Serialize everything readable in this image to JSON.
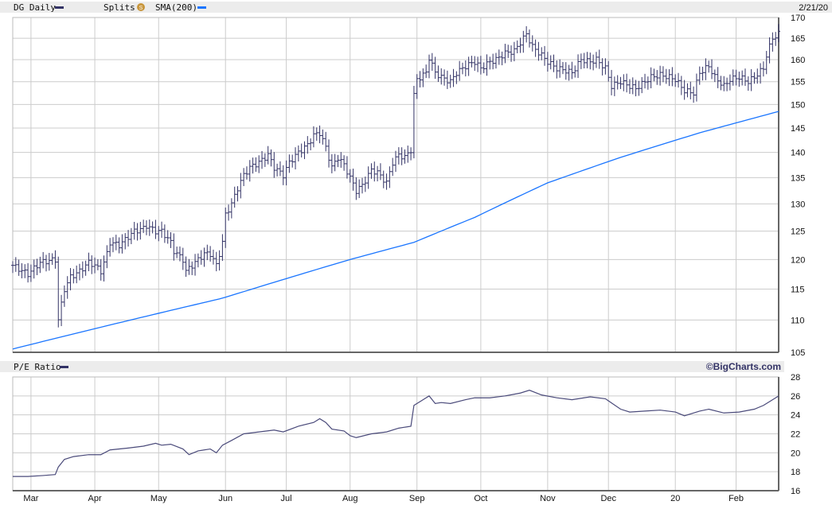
{
  "header": {
    "symbol_label": "DG Daily",
    "splits_label": "Splits",
    "splits_icon": "S",
    "sma_label": "SMA(200)",
    "date": "2/21/20",
    "pe_label": "P/E Ratio",
    "brand": "©BigCharts.com"
  },
  "colors": {
    "price": "#333366",
    "sma": "#1a75ff",
    "splits": "#c8963c",
    "grid": "#cccccc",
    "header_bg": "#ececec"
  },
  "chart_data": [
    {
      "type": "line",
      "title": "DG Daily",
      "scale": "log",
      "ylim": [
        105,
        170
      ],
      "y_ticks": [
        "170",
        "165",
        "160",
        "155",
        "150",
        "145",
        "140",
        "135",
        "130",
        "125",
        "120",
        "115",
        "110",
        "105"
      ],
      "x_ticks": [
        {
          "label": "Mar",
          "day": 6
        },
        {
          "label": "Apr",
          "day": 27
        },
        {
          "label": "May",
          "day": 48
        },
        {
          "label": "Jun",
          "day": 70
        },
        {
          "label": "Jul",
          "day": 90
        },
        {
          "label": "Aug",
          "day": 111
        },
        {
          "label": "Sep",
          "day": 133
        },
        {
          "label": "Oct",
          "day": 154
        },
        {
          "label": "Nov",
          "day": 176
        },
        {
          "label": "Dec",
          "day": 196
        },
        {
          "label": "20",
          "day": 218
        },
        {
          "label": "Feb",
          "day": 238
        }
      ],
      "days": 252,
      "series": [
        {
          "name": "DG Daily",
          "style": "ohlc",
          "points": [
            [
              0,
              119
            ],
            [
              5,
              117.5
            ],
            [
              9,
              119.5
            ],
            [
              14,
              120
            ],
            [
              15,
              110
            ],
            [
              17,
              115
            ],
            [
              19,
              117
            ],
            [
              22,
              118
            ],
            [
              25,
              119.5
            ],
            [
              27,
              119
            ],
            [
              29,
              118
            ],
            [
              31,
              121
            ],
            [
              32,
              123
            ],
            [
              35,
              122.5
            ],
            [
              38,
              124
            ],
            [
              40,
              125
            ],
            [
              43,
              125.5
            ],
            [
              44,
              126
            ],
            [
              47,
              125
            ],
            [
              49,
              125
            ],
            [
              52,
              123
            ],
            [
              53,
              121.5
            ],
            [
              56,
              120
            ],
            [
              57,
              118
            ],
            [
              59,
              119
            ],
            [
              61,
              120
            ],
            [
              63,
              121
            ],
            [
              65,
              121
            ],
            [
              67,
              119
            ],
            [
              69,
              123
            ],
            [
              70,
              128
            ],
            [
              72,
              130
            ],
            [
              74,
              133
            ],
            [
              76,
              135.5
            ],
            [
              78,
              137
            ],
            [
              81,
              138
            ],
            [
              84,
              139.5
            ],
            [
              86,
              137
            ],
            [
              89,
              135.5
            ],
            [
              91,
              138
            ],
            [
              94,
              140
            ],
            [
              97,
              141.5
            ],
            [
              99,
              143.5
            ],
            [
              101,
              144
            ],
            [
              103,
              141
            ],
            [
              105,
              137
            ],
            [
              107,
              139
            ],
            [
              109,
              137.5
            ],
            [
              111,
              135
            ],
            [
              113,
              132.5
            ],
            [
              115,
              133.5
            ],
            [
              118,
              136.5
            ],
            [
              120,
              136
            ],
            [
              123,
              134
            ],
            [
              125,
              138
            ],
            [
              127,
              139.5
            ],
            [
              129,
              139
            ],
            [
              131,
              140.5
            ],
            [
              132,
              152
            ],
            [
              133,
              155.5
            ],
            [
              136,
              157
            ],
            [
              137,
              160.5
            ],
            [
              139,
              157
            ],
            [
              141,
              156
            ],
            [
              144,
              155
            ],
            [
              146,
              157
            ],
            [
              149,
              158.5
            ],
            [
              152,
              159.5
            ],
            [
              154,
              158
            ],
            [
              157,
              159.5
            ],
            [
              159,
              160
            ],
            [
              162,
              161.5
            ],
            [
              165,
              162
            ],
            [
              167,
              164
            ],
            [
              169,
              166
            ],
            [
              171,
              163
            ],
            [
              174,
              161
            ],
            [
              176,
              159.5
            ],
            [
              179,
              158
            ],
            [
              182,
              157.5
            ],
            [
              184,
              157
            ],
            [
              187,
              160
            ],
            [
              190,
              159.5
            ],
            [
              192,
              160
            ],
            [
              195,
              158
            ],
            [
              197,
              154
            ],
            [
              200,
              155
            ],
            [
              203,
              154
            ],
            [
              205,
              153.5
            ],
            [
              208,
              155
            ],
            [
              210,
              156
            ],
            [
              213,
              156.5
            ],
            [
              216,
              156
            ],
            [
              218,
              155.5
            ],
            [
              221,
              153
            ],
            [
              224,
              152.5
            ],
            [
              226,
              157
            ],
            [
              229,
              158.5
            ],
            [
              231,
              156
            ],
            [
              234,
              154
            ],
            [
              236,
              155.5
            ],
            [
              239,
              156
            ],
            [
              242,
              155
            ],
            [
              244,
              156
            ],
            [
              247,
              158
            ],
            [
              248,
              161
            ],
            [
              250,
              165
            ],
            [
              252,
              166
            ]
          ]
        },
        {
          "name": "SMA(200)",
          "style": "line",
          "points": [
            [
              0,
              105.5
            ],
            [
              69,
              113.5
            ],
            [
              111,
              120
            ],
            [
              132,
              123
            ],
            [
              152,
              127.5
            ],
            [
              176,
              134
            ],
            [
              200,
              139
            ],
            [
              226,
              144
            ],
            [
              252,
              148.5
            ]
          ]
        }
      ]
    },
    {
      "type": "line",
      "title": "P/E Ratio",
      "ylim": [
        16,
        28
      ],
      "y_ticks": [
        "28",
        "26",
        "24",
        "22",
        "20",
        "18",
        "16"
      ],
      "series": [
        {
          "name": "P/E Ratio",
          "points": [
            [
              0,
              17.5
            ],
            [
              5,
              17.5
            ],
            [
              10,
              17.6
            ],
            [
              14,
              17.7
            ],
            [
              15,
              18.5
            ],
            [
              17,
              19.3
            ],
            [
              20,
              19.6
            ],
            [
              25,
              19.8
            ],
            [
              29,
              19.8
            ],
            [
              32,
              20.3
            ],
            [
              38,
              20.5
            ],
            [
              43,
              20.7
            ],
            [
              47,
              21.0
            ],
            [
              49,
              20.8
            ],
            [
              52,
              20.9
            ],
            [
              56,
              20.4
            ],
            [
              58,
              19.8
            ],
            [
              61,
              20.2
            ],
            [
              65,
              20.4
            ],
            [
              67,
              20.0
            ],
            [
              69,
              20.8
            ],
            [
              72,
              21.3
            ],
            [
              76,
              22.0
            ],
            [
              81,
              22.2
            ],
            [
              86,
              22.4
            ],
            [
              89,
              22.2
            ],
            [
              94,
              22.8
            ],
            [
              99,
              23.2
            ],
            [
              101,
              23.6
            ],
            [
              103,
              23.2
            ],
            [
              105,
              22.5
            ],
            [
              109,
              22.3
            ],
            [
              111,
              21.8
            ],
            [
              113,
              21.6
            ],
            [
              118,
              22.0
            ],
            [
              123,
              22.2
            ],
            [
              127,
              22.6
            ],
            [
              131,
              22.8
            ],
            [
              132,
              25.0
            ],
            [
              135,
              25.6
            ],
            [
              137,
              26.0
            ],
            [
              139,
              25.2
            ],
            [
              141,
              25.3
            ],
            [
              144,
              25.2
            ],
            [
              149,
              25.6
            ],
            [
              152,
              25.8
            ],
            [
              157,
              25.8
            ],
            [
              162,
              26.0
            ],
            [
              167,
              26.3
            ],
            [
              170,
              26.6
            ],
            [
              174,
              26.1
            ],
            [
              179,
              25.8
            ],
            [
              184,
              25.6
            ],
            [
              190,
              25.9
            ],
            [
              195,
              25.7
            ],
            [
              200,
              24.6
            ],
            [
              203,
              24.3
            ],
            [
              208,
              24.4
            ],
            [
              213,
              24.5
            ],
            [
              218,
              24.3
            ],
            [
              221,
              23.9
            ],
            [
              226,
              24.4
            ],
            [
              229,
              24.6
            ],
            [
              234,
              24.2
            ],
            [
              239,
              24.3
            ],
            [
              244,
              24.6
            ],
            [
              247,
              25.0
            ],
            [
              250,
              25.6
            ],
            [
              252,
              26.0
            ]
          ]
        }
      ]
    }
  ]
}
